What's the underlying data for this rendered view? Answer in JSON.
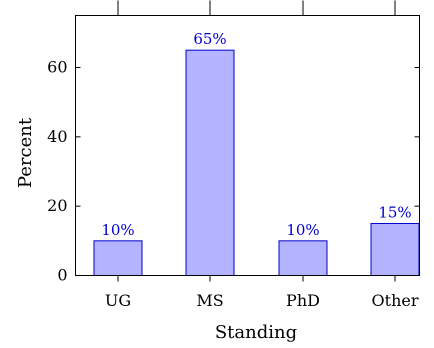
{
  "chart_data": {
    "type": "bar",
    "categories": [
      "UG",
      "MS",
      "PhD",
      "Other"
    ],
    "values": [
      10,
      65,
      10,
      15
    ],
    "data_labels": [
      "10%",
      "65%",
      "10%",
      "15%"
    ],
    "xlabel": "Standing",
    "ylabel": "Percent",
    "ylim": [
      0,
      75
    ],
    "yticks": [
      0,
      20,
      40,
      60
    ],
    "ytick_labels": [
      "0",
      "20",
      "40",
      "60"
    ],
    "grid": false,
    "legend": "none",
    "colors": {
      "bar_fill": "#b3b3ff",
      "bar_stroke": "#0000cc",
      "label": "#0000cc",
      "axis": "#000000"
    }
  }
}
